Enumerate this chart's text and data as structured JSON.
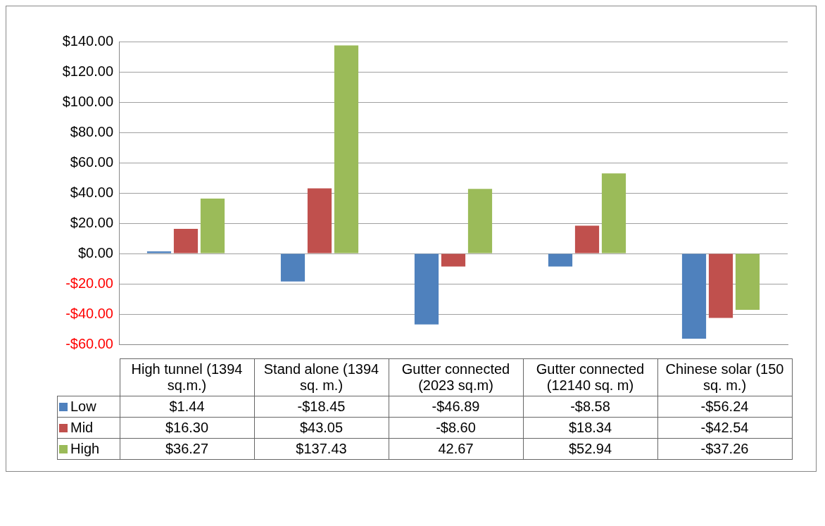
{
  "chart_data": {
    "type": "bar",
    "categories": [
      "High tunnel (1394 sq.m.)",
      "Stand alone (1394 sq. m.)",
      "Gutter connected (2023 sq.m)",
      "Gutter connected (12140 sq. m)",
      "Chinese solar (150 sq. m.)"
    ],
    "series": [
      {
        "name": "Low",
        "color": "#4f81bd",
        "values": [
          1.44,
          -18.45,
          -46.89,
          -8.58,
          -56.24
        ],
        "value_labels": [
          "$1.44",
          "-$18.45",
          "-$46.89",
          "-$8.58",
          "-$56.24"
        ]
      },
      {
        "name": "Mid",
        "color": "#c0504d",
        "values": [
          16.3,
          43.05,
          -8.6,
          18.34,
          -42.54
        ],
        "value_labels": [
          "$16.30",
          "$43.05",
          "-$8.60",
          "$18.34",
          "-$42.54"
        ]
      },
      {
        "name": "High",
        "color": "#9bbb59",
        "values": [
          36.27,
          137.43,
          42.67,
          52.94,
          -37.26
        ],
        "value_labels": [
          "$36.27",
          "$137.43",
          "42.67",
          "$52.94",
          "-$37.26"
        ]
      }
    ],
    "ylim": [
      -60,
      140
    ],
    "yticks": [
      {
        "value": -60,
        "label": "-$60.00"
      },
      {
        "value": -40,
        "label": "-$40.00"
      },
      {
        "value": -20,
        "label": "-$20.00"
      },
      {
        "value": 0,
        "label": "$0.00"
      },
      {
        "value": 20,
        "label": "$20.00"
      },
      {
        "value": 40,
        "label": "$40.00"
      },
      {
        "value": 60,
        "label": "$60.00"
      },
      {
        "value": 80,
        "label": "$80.00"
      },
      {
        "value": 100,
        "label": "$100.00"
      },
      {
        "value": 120,
        "label": "$120.00"
      },
      {
        "value": 140,
        "label": "$140.00"
      }
    ],
    "grid": "y",
    "legend": "bottom"
  }
}
